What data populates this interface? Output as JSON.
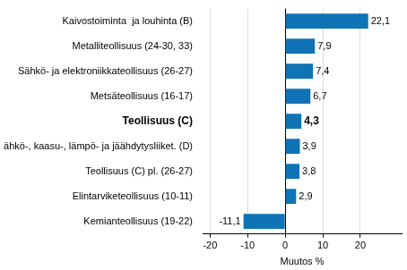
{
  "chart_data": {
    "type": "bar",
    "orientation": "horizontal",
    "categories": [
      "Kaivostoiminta  ja louhinta (B)",
      "Metalliteollisuus (24-30, 33)",
      "Sähkö- ja elektroniikkateollisuus (26-27)",
      "Metsäteollisuus (16-17)",
      "Teollisuus (C)",
      "Sähkö-, kaasu-, lämpö- ja jäähdytysliiket. (D)",
      "Teollisuus (C) pl. (26-27)",
      "Elintarviketeollisuus (10-11)",
      "Kemianteollisuus (19-22)"
    ],
    "values": [
      22.1,
      7.9,
      7.4,
      6.7,
      4.3,
      3.9,
      3.8,
      2.9,
      -11.1
    ],
    "value_labels": [
      "22,1",
      "7,9",
      "7,4",
      "6,7",
      "4,3",
      "3,9",
      "3,8",
      "2,9",
      "-11,1"
    ],
    "data_labels": true,
    "color": "#0f73b6",
    "x_label": "Muutos %",
    "xlim": [
      -22,
      31
    ],
    "xticks": [
      -20,
      -10,
      0,
      10,
      20
    ],
    "grid": true
  }
}
